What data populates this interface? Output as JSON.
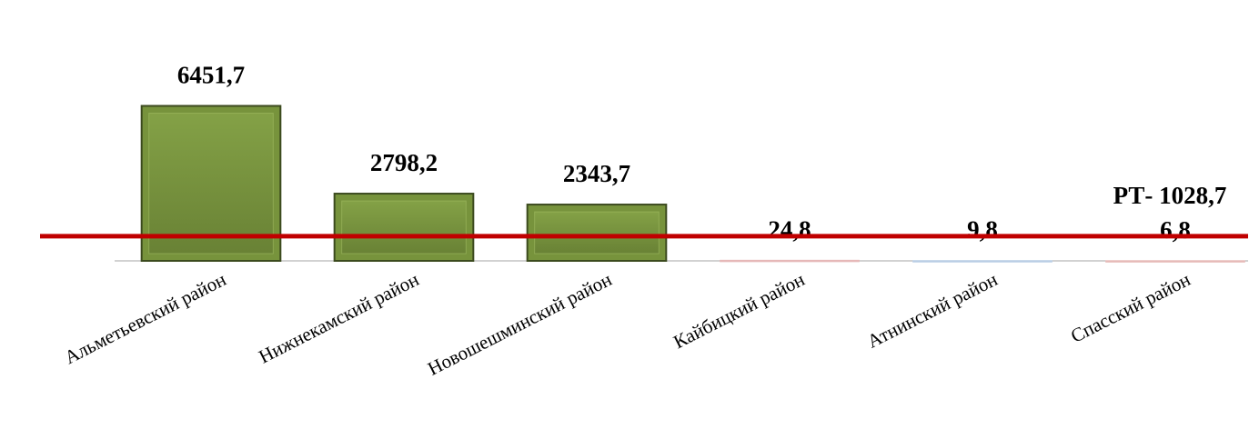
{
  "chart_data": {
    "type": "bar",
    "categories": [
      "Альметьевский район",
      "Нижнекамский район",
      "Новошешминский район",
      "Кайбицкий район",
      "Атнинский район",
      "Спасский район"
    ],
    "values": [
      6451.7,
      2798.2,
      2343.7,
      24.8,
      9.8,
      6.8
    ],
    "value_labels": [
      "6451,7",
      "2798,2",
      "2343,7",
      "24,8",
      "9,8",
      "6,8"
    ],
    "colors": [
      "#77933c",
      "#77933c",
      "#77933c",
      "#e6b9b8",
      "#b9cde5",
      "#e6b9b8"
    ],
    "ylim": [
      0,
      7000
    ],
    "reference_line": {
      "value": 1028.7,
      "label": "РТ- 1028,7",
      "color": "#c00000"
    }
  }
}
